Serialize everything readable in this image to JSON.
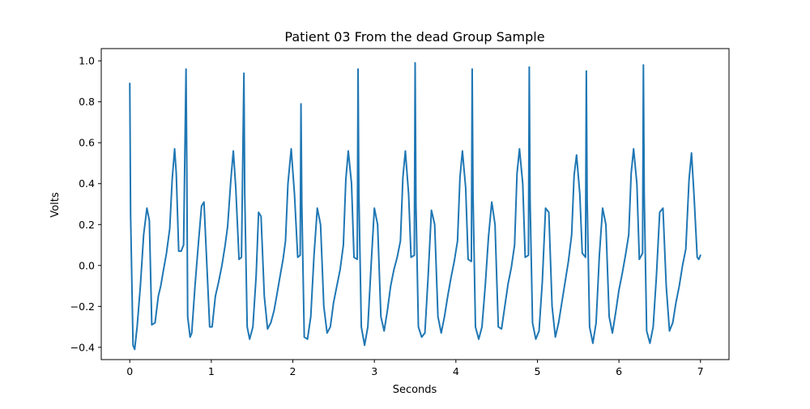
{
  "chart_data": {
    "type": "line",
    "title": "Patient 03 From the dead Group Sample",
    "xlabel": "Seconds",
    "ylabel": "Volts",
    "xlim": [
      -0.35,
      7.35
    ],
    "ylim": [
      -0.46,
      1.06
    ],
    "xticks": [
      0,
      1,
      2,
      3,
      4,
      5,
      6,
      7
    ],
    "yticks": [
      -0.4,
      -0.2,
      0.0,
      0.2,
      0.4,
      0.6,
      0.8,
      1.0
    ],
    "xtick_labels": [
      "0",
      "1",
      "2",
      "3",
      "4",
      "5",
      "6",
      "7"
    ],
    "ytick_labels": [
      "−0.4",
      "−0.2",
      "0.0",
      "0.2",
      "0.4",
      "0.6",
      "0.8",
      "1.0"
    ],
    "grid": false,
    "line_color": "#1f77b4",
    "series": [
      {
        "x": [
          0.0,
          0.01,
          0.04,
          0.06,
          0.09,
          0.13,
          0.17,
          0.21,
          0.24,
          0.27,
          0.31,
          0.35,
          0.38,
          0.41,
          0.45,
          0.49,
          0.52,
          0.55,
          0.57,
          0.6,
          0.63,
          0.66,
          0.69,
          0.7,
          0.71,
          0.74,
          0.76,
          0.8,
          0.84,
          0.88,
          0.91,
          0.94,
          0.98,
          1.01,
          1.05,
          1.09,
          1.13,
          1.17,
          1.2,
          1.24,
          1.27,
          1.3,
          1.34,
          1.37,
          1.4,
          1.41,
          1.44,
          1.47,
          1.51,
          1.55,
          1.58,
          1.61,
          1.65,
          1.69,
          1.73,
          1.77,
          1.81,
          1.84,
          1.88,
          1.91,
          1.94,
          1.98,
          2.02,
          2.06,
          2.09,
          2.1,
          2.11,
          2.14,
          2.18,
          2.22,
          2.26,
          2.3,
          2.34,
          2.38,
          2.42,
          2.46,
          2.5,
          2.54,
          2.58,
          2.62,
          2.65,
          2.68,
          2.72,
          2.75,
          2.79,
          2.8,
          2.81,
          2.84,
          2.88,
          2.92,
          2.96,
          3.0,
          3.04,
          3.08,
          3.12,
          3.16,
          3.2,
          3.24,
          3.28,
          3.32,
          3.35,
          3.38,
          3.42,
          3.45,
          3.49,
          3.5,
          3.51,
          3.54,
          3.58,
          3.62,
          3.66,
          3.7,
          3.74,
          3.78,
          3.82,
          3.86,
          3.9,
          3.94,
          3.98,
          4.02,
          4.05,
          4.08,
          4.12,
          4.15,
          4.19,
          4.2,
          4.21,
          4.24,
          4.28,
          4.32,
          4.36,
          4.4,
          4.44,
          4.48,
          4.52,
          4.56,
          4.6,
          4.64,
          4.68,
          4.72,
          4.75,
          4.78,
          4.82,
          4.85,
          4.89,
          4.9,
          4.91,
          4.94,
          4.98,
          5.02,
          5.06,
          5.1,
          5.14,
          5.18,
          5.22,
          5.26,
          5.3,
          5.34,
          5.38,
          5.42,
          5.45,
          5.48,
          5.52,
          5.55,
          5.59,
          5.6,
          5.61,
          5.64,
          5.68,
          5.72,
          5.76,
          5.8,
          5.84,
          5.88,
          5.92,
          5.96,
          6.0,
          6.04,
          6.08,
          6.12,
          6.15,
          6.18,
          6.22,
          6.25,
          6.29,
          6.3,
          6.31,
          6.34,
          6.38,
          6.42,
          6.46,
          6.5,
          6.54,
          6.58,
          6.62,
          6.66,
          6.7,
          6.74,
          6.78,
          6.82,
          6.86,
          6.89,
          6.92,
          6.96,
          6.98,
          7.0
        ],
        "y": [
          0.89,
          0.25,
          -0.39,
          -0.41,
          -0.3,
          -0.1,
          0.15,
          0.28,
          0.22,
          -0.29,
          -0.28,
          -0.15,
          -0.1,
          -0.03,
          0.06,
          0.18,
          0.42,
          0.57,
          0.45,
          0.07,
          0.07,
          0.1,
          0.96,
          0.45,
          -0.25,
          -0.35,
          -0.33,
          -0.1,
          0.1,
          0.29,
          0.31,
          0.05,
          -0.3,
          -0.3,
          -0.15,
          -0.08,
          0.0,
          0.1,
          0.19,
          0.42,
          0.56,
          0.38,
          0.03,
          0.04,
          0.94,
          0.35,
          -0.3,
          -0.36,
          -0.3,
          -0.05,
          0.26,
          0.24,
          -0.15,
          -0.31,
          -0.28,
          -0.22,
          -0.13,
          -0.06,
          0.03,
          0.12,
          0.4,
          0.57,
          0.35,
          0.04,
          0.05,
          0.79,
          0.3,
          -0.35,
          -0.36,
          -0.25,
          0.05,
          0.28,
          0.2,
          -0.2,
          -0.33,
          -0.3,
          -0.18,
          -0.1,
          -0.02,
          0.1,
          0.42,
          0.56,
          0.4,
          0.04,
          0.03,
          0.96,
          0.35,
          -0.3,
          -0.39,
          -0.3,
          0.0,
          0.28,
          0.2,
          -0.25,
          -0.32,
          -0.22,
          -0.1,
          -0.02,
          0.04,
          0.12,
          0.43,
          0.56,
          0.35,
          0.04,
          0.05,
          0.99,
          0.3,
          -0.3,
          -0.35,
          -0.33,
          -0.05,
          0.27,
          0.2,
          -0.25,
          -0.33,
          -0.25,
          -0.15,
          -0.06,
          0.02,
          0.12,
          0.43,
          0.56,
          0.38,
          0.03,
          0.02,
          0.96,
          0.35,
          -0.3,
          -0.36,
          -0.3,
          -0.1,
          0.14,
          0.31,
          0.2,
          -0.3,
          -0.31,
          -0.2,
          -0.09,
          -0.01,
          0.1,
          0.45,
          0.57,
          0.4,
          0.04,
          0.05,
          0.97,
          0.32,
          -0.28,
          -0.36,
          -0.32,
          -0.08,
          0.28,
          0.26,
          -0.2,
          -0.35,
          -0.28,
          -0.18,
          -0.08,
          0.02,
          0.15,
          0.44,
          0.54,
          0.35,
          0.06,
          0.04,
          0.95,
          0.32,
          -0.3,
          -0.38,
          -0.28,
          0.05,
          0.28,
          0.2,
          -0.25,
          -0.33,
          -0.23,
          -0.12,
          -0.04,
          0.05,
          0.15,
          0.45,
          0.57,
          0.4,
          0.03,
          0.06,
          0.98,
          0.35,
          -0.32,
          -0.38,
          -0.3,
          -0.05,
          0.26,
          0.28,
          -0.1,
          -0.32,
          -0.28,
          -0.18,
          -0.1,
          0.0,
          0.08,
          0.42,
          0.55,
          0.35,
          0.04,
          0.03,
          0.05
        ]
      }
    ]
  }
}
